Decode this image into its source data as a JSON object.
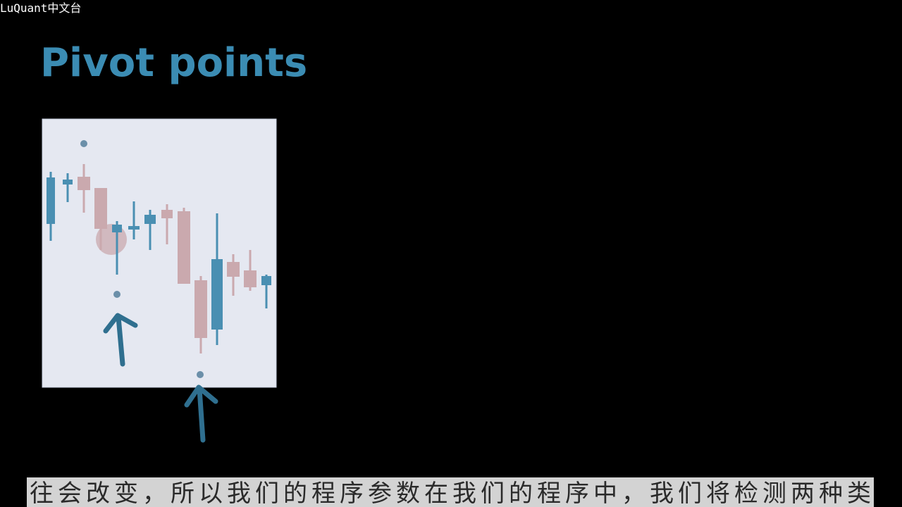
{
  "watermark": "LuQuant中文台",
  "title": "Pivot points",
  "subtitle": "往会改变，所以我们的程序参数在我们的程序中，我们将检测两种类"
}
